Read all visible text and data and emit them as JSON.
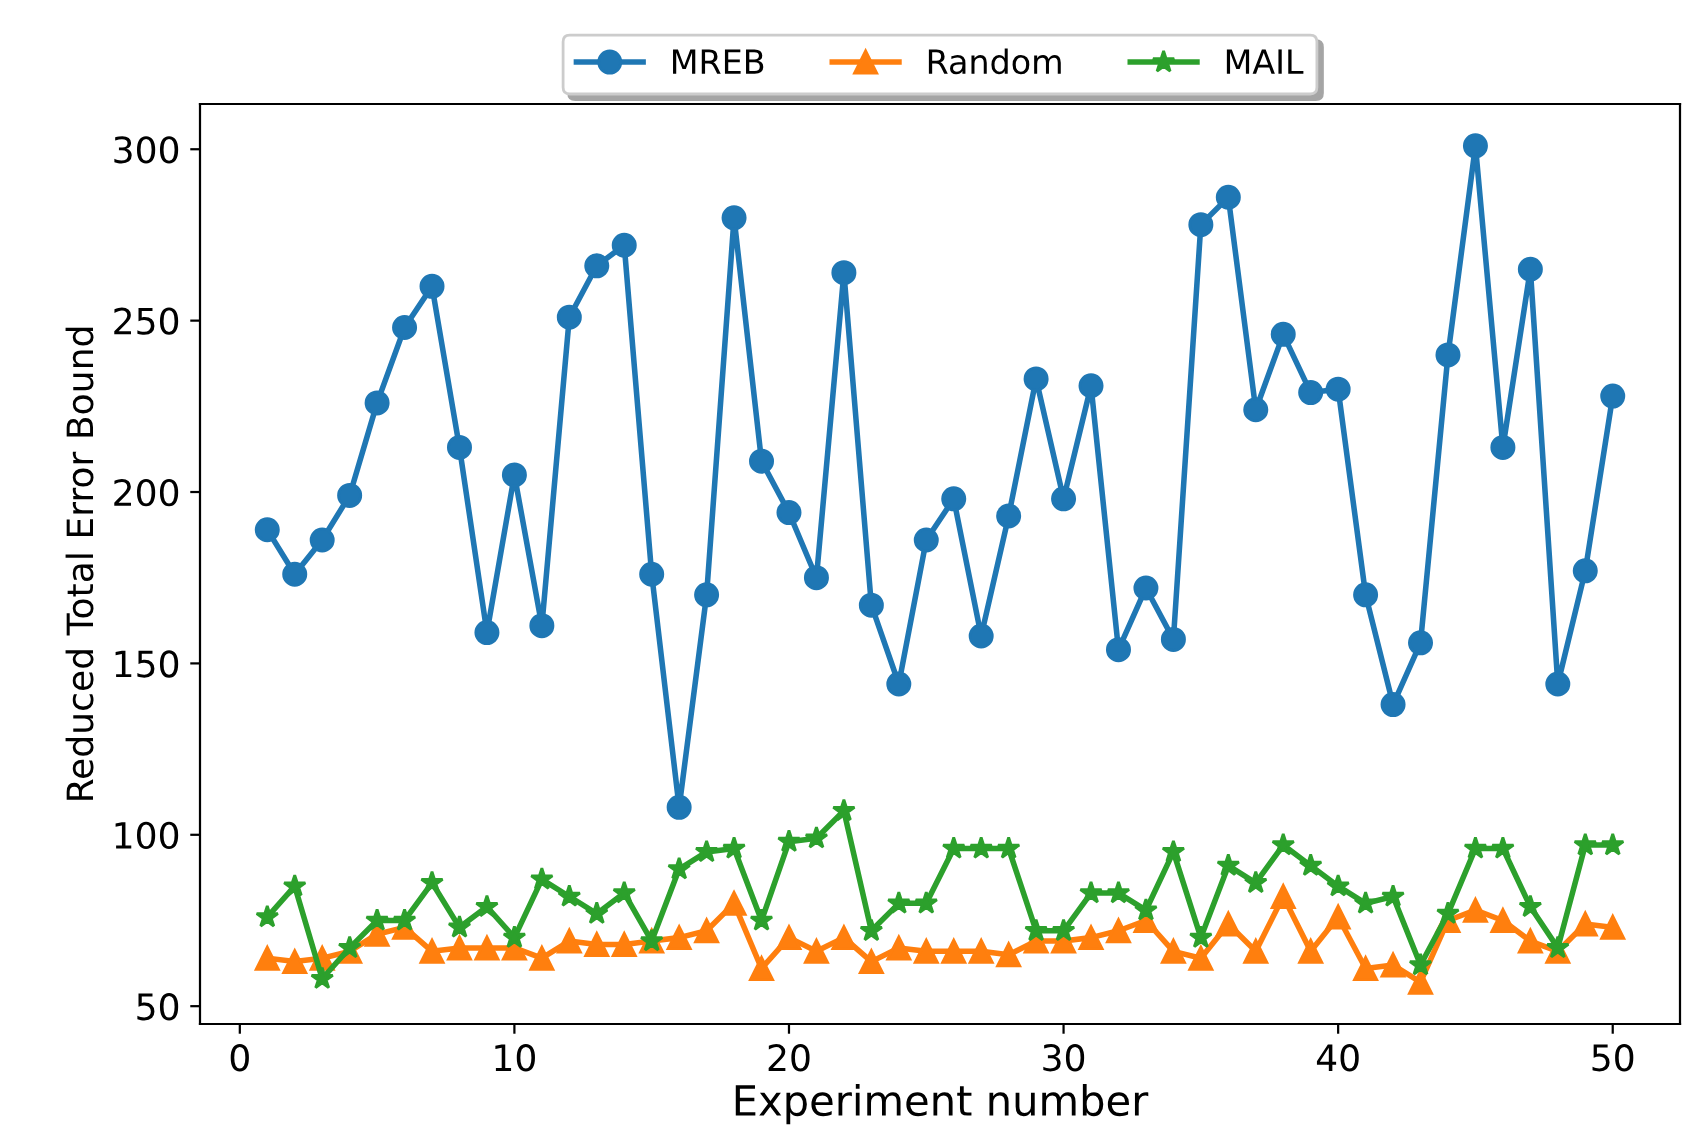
{
  "chart_data": {
    "type": "line",
    "xlabel": "Experiment number",
    "ylabel": "Reduced Total Error Bound",
    "x": [
      1,
      2,
      3,
      4,
      5,
      6,
      7,
      8,
      9,
      10,
      11,
      12,
      13,
      14,
      15,
      16,
      17,
      18,
      19,
      20,
      21,
      22,
      23,
      24,
      25,
      26,
      27,
      28,
      29,
      30,
      31,
      32,
      33,
      34,
      35,
      36,
      37,
      38,
      39,
      40,
      41,
      42,
      43,
      44,
      45,
      46,
      47,
      48,
      49,
      50
    ],
    "series": [
      {
        "name": "MREB",
        "color": "#1f77b4",
        "marker": "circle",
        "values": [
          189,
          176,
          186,
          199,
          226,
          248,
          260,
          213,
          159,
          205,
          161,
          251,
          266,
          272,
          176,
          108,
          170,
          280,
          209,
          194,
          175,
          264,
          167,
          144,
          186,
          198,
          158,
          193,
          233,
          198,
          231,
          154,
          172,
          157,
          278,
          286,
          224,
          246,
          229,
          230,
          170,
          138,
          156,
          240,
          301,
          213,
          265,
          144,
          177,
          228
        ]
      },
      {
        "name": "Random",
        "color": "#ff7f0e",
        "marker": "triangle",
        "values": [
          64,
          63,
          64,
          66,
          71,
          73,
          66,
          67,
          67,
          67,
          64,
          69,
          68,
          68,
          69,
          70,
          72,
          80,
          61,
          70,
          66,
          70,
          63,
          67,
          66,
          66,
          66,
          65,
          69,
          69,
          70,
          72,
          75,
          66,
          64,
          74,
          66,
          82,
          66,
          76,
          61,
          62,
          57,
          75,
          78,
          75,
          69,
          66,
          74,
          73
        ]
      },
      {
        "name": "MAIL",
        "color": "#2ca02c",
        "marker": "star",
        "values": [
          76,
          85,
          58,
          67,
          75,
          75,
          86,
          73,
          79,
          70,
          87,
          82,
          77,
          83,
          69,
          90,
          95,
          96,
          75,
          98,
          99,
          107,
          72,
          80,
          80,
          96,
          96,
          96,
          72,
          72,
          83,
          83,
          78,
          95,
          70,
          91,
          86,
          97,
          91,
          85,
          80,
          82,
          62,
          77,
          96,
          96,
          79,
          67,
          97,
          97
        ]
      }
    ],
    "xlim": [
      -1.45,
      52.45
    ],
    "ylim": [
      44.8,
      313.2
    ],
    "xticks": [
      0,
      10,
      20,
      30,
      40,
      50
    ],
    "yticks": [
      50,
      100,
      150,
      200,
      250,
      300
    ],
    "legend": "top",
    "grid": false,
    "line_style": "solid"
  }
}
